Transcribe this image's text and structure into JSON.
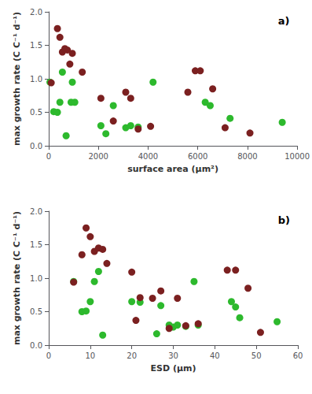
{
  "chart_data": [
    {
      "type": "scatter",
      "annotation": "a)",
      "xlabel": "surface area (μm²)",
      "ylabel": "max growth rate (C C⁻¹ d⁻¹)",
      "xlim": [
        0,
        10000
      ],
      "ylim": [
        0,
        2
      ],
      "xticks": [
        0,
        2000,
        4000,
        6000,
        8000,
        10000
      ],
      "yticks": [
        {
          "value": 0,
          "label": "0.0"
        },
        0.5,
        {
          "value": 1.0,
          "label": "1.0"
        },
        1.5,
        {
          "value": 2.0,
          "label": "2.0"
        }
      ],
      "grid": false,
      "series": [
        {
          "color": "#2db92d",
          "x": [
            50,
            200,
            350,
            450,
            550,
            700,
            900,
            950,
            1050,
            2100,
            2300,
            2600,
            3100,
            3300,
            3600,
            4200,
            6300,
            6500,
            7300,
            9400
          ],
          "values": [
            0.95,
            0.51,
            0.5,
            0.65,
            1.1,
            0.15,
            0.65,
            0.95,
            0.65,
            0.3,
            0.18,
            0.6,
            0.27,
            0.3,
            0.28,
            0.95,
            0.65,
            0.6,
            0.41,
            0.35
          ]
        },
        {
          "color": "#7b2020",
          "x": [
            100,
            350,
            450,
            550,
            650,
            750,
            850,
            950,
            1350,
            2100,
            2600,
            3100,
            3300,
            3600,
            4100,
            5600,
            5900,
            6100,
            6600,
            7100,
            8100
          ],
          "values": [
            0.94,
            1.75,
            1.62,
            1.4,
            1.45,
            1.43,
            1.22,
            1.38,
            1.1,
            0.71,
            0.37,
            0.8,
            0.71,
            0.25,
            0.29,
            0.8,
            1.12,
            1.12,
            0.85,
            0.27,
            0.19
          ]
        }
      ]
    },
    {
      "type": "scatter",
      "annotation": "b)",
      "xlabel": "ESD (μm)",
      "ylabel": "max growth rate (C C⁻¹ d⁻¹)",
      "xlim": [
        0,
        60
      ],
      "ylim": [
        0,
        2
      ],
      "xticks": [
        0,
        10,
        20,
        30,
        40,
        50,
        60
      ],
      "yticks": [
        {
          "value": 0,
          "label": "0.0"
        },
        0.5,
        {
          "value": 1.0,
          "label": "1.0"
        },
        1.5,
        {
          "value": 2.0,
          "label": "2.0"
        }
      ],
      "grid": false,
      "series": [
        {
          "color": "#2db92d",
          "x": [
            6,
            8,
            9,
            10,
            11,
            12,
            13,
            20,
            22,
            26,
            27,
            29,
            30,
            31,
            33,
            35,
            36,
            44,
            45,
            46,
            55
          ],
          "values": [
            0.95,
            0.5,
            0.51,
            0.65,
            0.95,
            1.1,
            0.15,
            0.65,
            0.64,
            0.17,
            0.59,
            0.3,
            0.27,
            0.3,
            0.28,
            0.95,
            0.3,
            0.65,
            0.57,
            0.41,
            0.35
          ]
        },
        {
          "color": "#7b2020",
          "x": [
            6,
            8,
            9,
            10,
            11,
            12,
            13,
            14,
            20,
            21,
            22,
            25,
            27,
            29,
            31,
            33,
            36,
            43,
            45,
            48,
            51
          ],
          "values": [
            0.94,
            1.35,
            1.75,
            1.62,
            1.4,
            1.45,
            1.43,
            1.22,
            1.09,
            0.37,
            0.71,
            0.7,
            0.81,
            0.25,
            0.7,
            0.29,
            0.32,
            1.12,
            1.12,
            0.85,
            0.19
          ]
        }
      ]
    }
  ]
}
